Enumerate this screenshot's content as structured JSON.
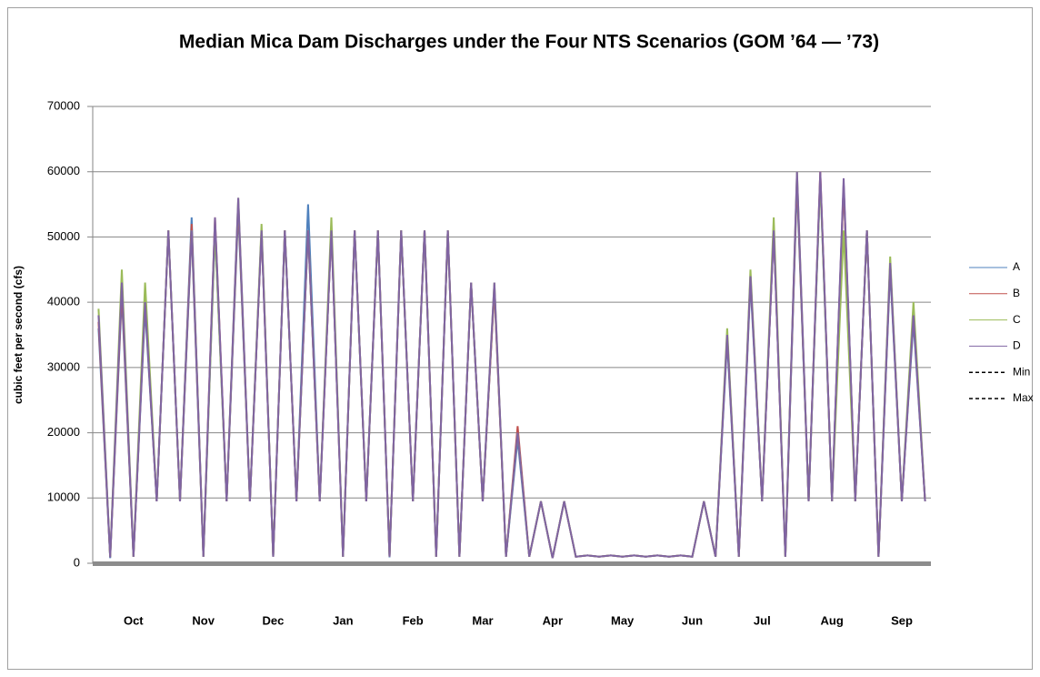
{
  "chart_data": {
    "type": "line",
    "title": "Median Mica Dam Discharges under the Four NTS Scenarios (GOM ’64 — ’73)",
    "y_label": "cubic feet per second (cfs)",
    "categories": [
      null,
      null,
      null,
      "Oct",
      null,
      null,
      null,
      null,
      null,
      "Nov",
      null,
      null,
      null,
      null,
      null,
      "Dec",
      null,
      null,
      null,
      null,
      null,
      "Jan",
      null,
      null,
      null,
      null,
      null,
      "Feb",
      null,
      null,
      null,
      null,
      null,
      "Mar",
      null,
      null,
      null,
      null,
      null,
      "Apr",
      null,
      null,
      null,
      null,
      null,
      "May",
      null,
      null,
      null,
      null,
      null,
      "Jun",
      null,
      null,
      null,
      null,
      null,
      "Jul",
      null,
      null,
      null,
      null,
      null,
      "Aug",
      null,
      null,
      null,
      null,
      null,
      "Sep",
      null,
      null
    ],
    "ylim": [
      0,
      70000
    ],
    "yticks": [
      0,
      10000,
      20000,
      30000,
      40000,
      50000,
      60000,
      70000
    ],
    "grid": true,
    "legend": "right",
    "series": [
      {
        "name": "A",
        "color": "#4f81bd",
        "values": [
          36000,
          800,
          41000,
          1000,
          39000,
          9500,
          51000,
          9500,
          53000,
          1000,
          51000,
          9500,
          54000,
          9500,
          51000,
          1000,
          51000,
          9500,
          55000,
          9500,
          51000,
          1000,
          51000,
          9500,
          51000,
          900,
          51000,
          9500,
          51000,
          1000,
          51000,
          1000,
          43000,
          9500,
          42000,
          1000,
          19000,
          1000,
          9500,
          800,
          9500,
          1000,
          1200,
          1000,
          1200,
          1000,
          1200,
          1000,
          1200,
          1000,
          1200,
          1000,
          9500,
          1000,
          34000,
          1000,
          43000,
          9500,
          51000,
          1000,
          58000,
          9500,
          59000,
          9500,
          58000,
          9500,
          51000,
          1000,
          45000,
          9500,
          37000,
          9500
        ]
      },
      {
        "name": "B",
        "color": "#c0504d",
        "values": [
          37000,
          900,
          42000,
          1000,
          40000,
          9500,
          51000,
          9500,
          52000,
          1000,
          53000,
          9500,
          55000,
          9500,
          51000,
          1000,
          51000,
          9500,
          51000,
          9500,
          51000,
          1000,
          51000,
          9500,
          51000,
          1000,
          51000,
          9500,
          51000,
          1000,
          51000,
          1000,
          43000,
          9500,
          42000,
          1000,
          21000,
          1000,
          9500,
          800,
          9500,
          1000,
          1200,
          1000,
          1200,
          1000,
          1200,
          1000,
          1200,
          1000,
          1200,
          1000,
          9500,
          1000,
          35000,
          1000,
          44000,
          9500,
          51000,
          1000,
          59000,
          9500,
          60000,
          9500,
          58000,
          9500,
          51000,
          1000,
          46000,
          9500,
          38000,
          9500
        ]
      },
      {
        "name": "C",
        "color": "#9bbb59",
        "values": [
          39000,
          900,
          45000,
          1000,
          43000,
          9500,
          51000,
          9500,
          51000,
          1000,
          51000,
          9500,
          56000,
          9500,
          52000,
          1000,
          51000,
          9500,
          51000,
          9500,
          53000,
          1000,
          51000,
          9500,
          51000,
          1000,
          51000,
          9500,
          51000,
          1000,
          51000,
          1000,
          43000,
          9500,
          43000,
          1000,
          20000,
          1000,
          9500,
          800,
          9500,
          1000,
          1200,
          1000,
          1200,
          1000,
          1200,
          1000,
          1200,
          1000,
          1200,
          1000,
          9500,
          1000,
          36000,
          1000,
          45000,
          9500,
          53000,
          1000,
          60000,
          9500,
          59000,
          9500,
          51000,
          9500,
          51000,
          1000,
          47000,
          9500,
          40000,
          9500
        ]
      },
      {
        "name": "D",
        "color": "#8064a2",
        "values": [
          38000,
          900,
          43000,
          1000,
          40000,
          9500,
          51000,
          9500,
          51000,
          1000,
          53000,
          9500,
          56000,
          9500,
          51000,
          1000,
          51000,
          9500,
          51000,
          9500,
          51000,
          1000,
          51000,
          9500,
          51000,
          1000,
          51000,
          9500,
          51000,
          1000,
          51000,
          1000,
          43000,
          9500,
          43000,
          1000,
          20000,
          1000,
          9500,
          800,
          9500,
          1000,
          1200,
          1000,
          1200,
          1000,
          1200,
          1000,
          1200,
          1000,
          1200,
          1000,
          9500,
          1000,
          35000,
          1000,
          44000,
          9500,
          51000,
          1000,
          60000,
          9500,
          60000,
          9500,
          59000,
          9500,
          51000,
          1000,
          46000,
          9500,
          38000,
          9500
        ]
      },
      {
        "name": "Min",
        "color": "#000000",
        "dashed": true,
        "values": [
          null,
          null,
          null,
          null,
          null,
          null,
          null,
          null,
          null,
          null,
          null,
          null,
          null,
          null,
          null,
          null,
          null,
          null,
          null,
          null,
          null,
          null,
          null,
          null,
          null,
          null,
          null,
          null,
          null,
          null,
          null,
          null,
          null,
          null,
          null,
          null,
          null,
          null,
          null,
          null,
          null,
          null,
          null,
          null,
          null,
          null,
          null,
          null,
          null,
          null,
          null,
          null,
          null,
          null,
          null,
          null,
          null,
          null,
          null,
          null,
          null,
          null,
          null,
          null,
          null,
          null,
          null,
          null,
          null,
          null,
          null,
          null
        ]
      },
      {
        "name": "Max",
        "color": "#000000",
        "dashed": true,
        "values": [
          null,
          null,
          null,
          null,
          null,
          null,
          null,
          null,
          null,
          null,
          null,
          null,
          null,
          null,
          null,
          null,
          null,
          null,
          null,
          null,
          null,
          null,
          null,
          null,
          null,
          null,
          null,
          null,
          null,
          null,
          null,
          null,
          null,
          null,
          null,
          null,
          null,
          null,
          null,
          null,
          null,
          null,
          null,
          null,
          null,
          null,
          null,
          null,
          null,
          null,
          null,
          null,
          null,
          null,
          null,
          null,
          null,
          null,
          null,
          null,
          null,
          null,
          null,
          null,
          null,
          null,
          null,
          null,
          null,
          null,
          null,
          null
        ]
      }
    ]
  }
}
